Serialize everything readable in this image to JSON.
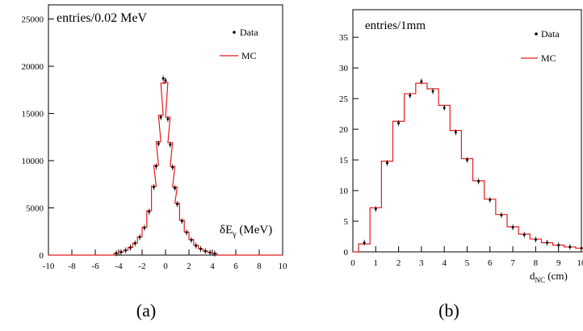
{
  "chart_data": [
    {
      "type": "histogram",
      "panel": "(a)",
      "annotation": "entries/0.02 MeV",
      "xlabel_main": "δE",
      "xlabel_sub": "γ",
      "xlabel_unit": " (MeV)",
      "xlim": [
        -10,
        10
      ],
      "ylim": [
        0,
        26500
      ],
      "xticks": [
        -10,
        -8,
        -6,
        -4,
        -2,
        0,
        2,
        4,
        6,
        8,
        10
      ],
      "yticks": [
        0,
        5000,
        10000,
        15000,
        20000,
        25000
      ],
      "legend": {
        "placement": "top-right",
        "entries": [
          "Data",
          "MC"
        ]
      },
      "series": [
        {
          "name": "Data",
          "style": "points",
          "color": "#000000",
          "x": [
            -4.2,
            -3.8,
            -3.4,
            -3.0,
            -2.6,
            -2.2,
            -1.8,
            -1.4,
            -1.0,
            -0.8,
            -0.6,
            -0.4,
            -0.2,
            0.0,
            0.2,
            0.4,
            0.6,
            0.8,
            1.0,
            1.4,
            1.8,
            2.2,
            2.6,
            3.0,
            3.4,
            3.8,
            4.2
          ],
          "y": [
            200,
            320,
            500,
            800,
            1250,
            1900,
            2900,
            4600,
            7200,
            9400,
            11800,
            14600,
            18700,
            18500,
            14400,
            11700,
            9300,
            7100,
            5400,
            3600,
            2400,
            1600,
            1000,
            650,
            420,
            270,
            170
          ]
        },
        {
          "name": "MC",
          "style": "step",
          "color": "#e41a1c",
          "x": [
            -4.2,
            -3.8,
            -3.4,
            -3.0,
            -2.6,
            -2.2,
            -1.8,
            -1.4,
            -1.0,
            -0.8,
            -0.6,
            -0.4,
            -0.2,
            0.0,
            0.2,
            0.4,
            0.6,
            0.8,
            1.0,
            1.4,
            1.8,
            2.2,
            2.6,
            3.0,
            3.4,
            3.8,
            4.2
          ],
          "y": [
            210,
            330,
            520,
            820,
            1270,
            1950,
            2950,
            4700,
            7300,
            9500,
            12000,
            14800,
            18200,
            18300,
            14600,
            11900,
            9400,
            7200,
            5500,
            3700,
            2450,
            1650,
            1050,
            680,
            440,
            280,
            180
          ]
        }
      ]
    },
    {
      "type": "histogram",
      "panel": "(b)",
      "annotation": "entries/1mm",
      "xlabel_main": "d",
      "xlabel_sub": "NC",
      "xlabel_unit": "  (cm)",
      "xlim": [
        0,
        10
      ],
      "ylim": [
        0,
        39.5
      ],
      "xticks": [
        0,
        1,
        2,
        3,
        4,
        5,
        6,
        7,
        8,
        9,
        10
      ],
      "yticks": [
        0,
        5,
        10,
        15,
        20,
        25,
        30,
        35
      ],
      "legend": {
        "placement": "top-right",
        "entries": [
          "Data",
          "MC"
        ]
      },
      "series": [
        {
          "name": "Data",
          "style": "points",
          "color": "#000000",
          "x": [
            0.5,
            1.0,
            1.5,
            2.0,
            2.5,
            3.0,
            3.5,
            4.0,
            4.5,
            5.0,
            5.5,
            6.0,
            6.5,
            7.0,
            7.5,
            8.0,
            8.5,
            9.0,
            9.5,
            10.0
          ],
          "y": [
            1.5,
            7.0,
            14.5,
            21.0,
            25.5,
            27.8,
            26.2,
            23.5,
            19.5,
            15.0,
            11.5,
            8.5,
            6.0,
            4.0,
            2.8,
            2.0,
            1.5,
            1.1,
            0.8,
            0.6
          ]
        },
        {
          "name": "MC",
          "style": "step",
          "color": "#e41a1c",
          "x": [
            0.5,
            1.0,
            1.5,
            2.0,
            2.5,
            3.0,
            3.5,
            4.0,
            4.5,
            5.0,
            5.5,
            6.0,
            6.5,
            7.0,
            7.5,
            8.0,
            8.5,
            9.0,
            9.5,
            10.0
          ],
          "y": [
            1.3,
            7.2,
            14.8,
            21.3,
            25.8,
            27.5,
            26.6,
            23.9,
            19.8,
            15.2,
            11.6,
            8.6,
            6.1,
            4.1,
            2.9,
            2.1,
            1.5,
            1.1,
            0.8,
            0.6
          ]
        }
      ]
    }
  ]
}
